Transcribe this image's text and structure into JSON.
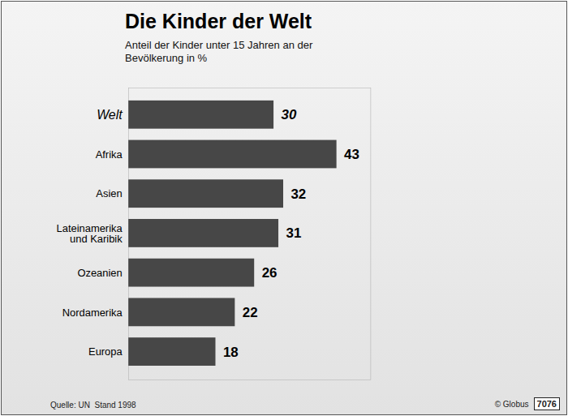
{
  "chart_data": {
    "type": "bar",
    "orientation": "horizontal",
    "title": "Die Kinder der Welt",
    "subtitle": "Anteil der Kinder unter 15 Jahren an der Bevölkerung in %",
    "categories": [
      "Welt",
      "Afrika",
      "Asien",
      "Lateinamerika und Karibik",
      "Ozeanien",
      "Nordamerika",
      "Europa"
    ],
    "values": [
      30,
      43,
      32,
      31,
      26,
      22,
      18
    ],
    "color": "#474747",
    "xlim": [
      0,
      50
    ],
    "xticks": [],
    "grid": false,
    "data_labels": true,
    "tick_labels": "y",
    "source": "Quelle: UN  Stand 1998",
    "credit": "© Globus",
    "code": "7076"
  }
}
